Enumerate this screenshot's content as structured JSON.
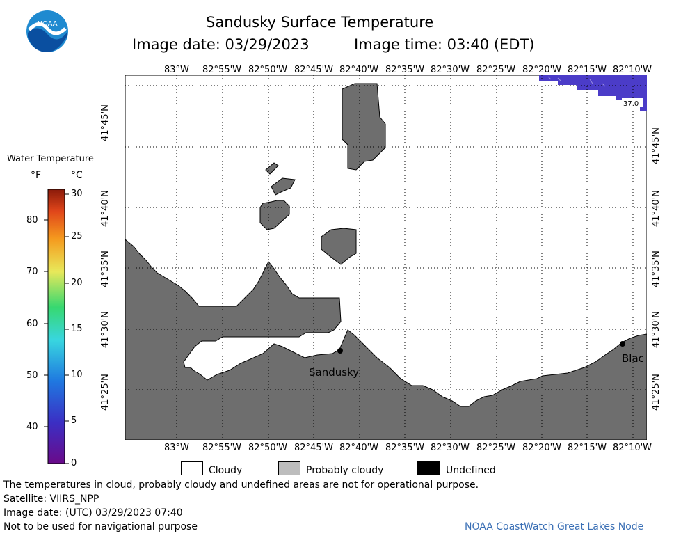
{
  "header": {
    "title": "Sandusky Surface Temperature",
    "image_date": "Image date: 03/29/2023",
    "image_time": "Image time: 03:40 (EDT)"
  },
  "logo": {
    "text": "NOAA"
  },
  "colorbar": {
    "title": "Water Temperature",
    "unit_f": "°F",
    "unit_c": "°C",
    "f_ticks": [
      "80",
      "70",
      "60",
      "50",
      "40"
    ],
    "c_ticks": [
      "30",
      "25",
      "20",
      "15",
      "10",
      "5",
      "0"
    ]
  },
  "map": {
    "top_lon_labels": [
      "83°W",
      "82°55'W",
      "82°50'W",
      "82°45'W",
      "82°40'W",
      "82°35'W",
      "82°30'W",
      "82°25'W",
      "82°20'W",
      "82°15'W",
      "82°10'W"
    ],
    "bottom_lon_labels": [
      "83°W",
      "82°55'W",
      "82°50'W",
      "82°45'W",
      "82°40'W",
      "82°35'W",
      "82°30'W",
      "82°25'W",
      "82°20'W",
      "82°15'W",
      "82°10'W"
    ],
    "left_lat_labels": [
      "41°45'N",
      "41°40'N",
      "41°35'N",
      "41°30'N",
      "41°25'N"
    ],
    "right_lat_labels": [
      "41°45'N",
      "41°40'N",
      "41°35'N",
      "41°30'N",
      "41°25'N"
    ],
    "water_temp_label": "37.0",
    "city_sandusky": "Sandusky",
    "city_black": "Blac",
    "colors": {
      "land": "#6e6e6e",
      "water_cold": "#4b3cc8",
      "cloud": "#ffffff"
    }
  },
  "legend": {
    "cloudy": "Cloudy",
    "probably_cloudy": "Probably cloudy",
    "undefined": "Undefined"
  },
  "footer": {
    "disclaimer": "The temperatures in cloud, probably cloudy and undefined areas are not for operational purpose.",
    "satellite": "Satellite: VIIRS_NPP",
    "utc_date": "Image date: (UTC) 03/29/2023  07:40",
    "navigation": "Not to be used for navigational purpose",
    "credit": "NOAA CoastWatch Great Lakes Node"
  }
}
